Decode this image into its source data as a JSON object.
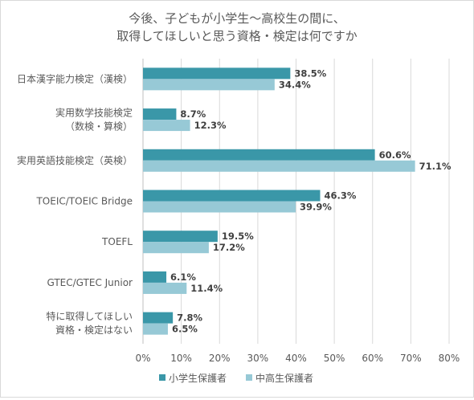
{
  "chart_data": {
    "type": "bar",
    "orientation": "horizontal",
    "title": [
      "今後、子どもが小学生～高校生の間に、",
      "取得してほしいと思う資格・検定は何ですか"
    ],
    "categories": [
      [
        "日本漢字能力検定（漢検）"
      ],
      [
        "実用数学技能検定",
        "（数検・算検）"
      ],
      [
        "実用英語技能検定（英検）"
      ],
      [
        "TOEIC/TOEIC Bridge"
      ],
      [
        "TOEFL"
      ],
      [
        "GTEC/GTEC Junior"
      ],
      [
        "特に取得してほしい",
        "資格・検定はない"
      ]
    ],
    "series": [
      {
        "name": "小学生保護者",
        "color": "#3a97a8",
        "values": [
          38.5,
          8.7,
          60.6,
          46.3,
          19.5,
          6.1,
          7.8
        ]
      },
      {
        "name": "中高生保護者",
        "color": "#97c9d6",
        "values": [
          34.4,
          12.3,
          71.1,
          39.9,
          17.2,
          11.4,
          6.5
        ]
      }
    ],
    "value_suffix": "%",
    "xlim": [
      0,
      80
    ],
    "xticks": [
      "0%",
      "10%",
      "20%",
      "30%",
      "40%",
      "50%",
      "60%",
      "70%",
      "80%"
    ],
    "grid": true,
    "legend_position": "bottom"
  }
}
